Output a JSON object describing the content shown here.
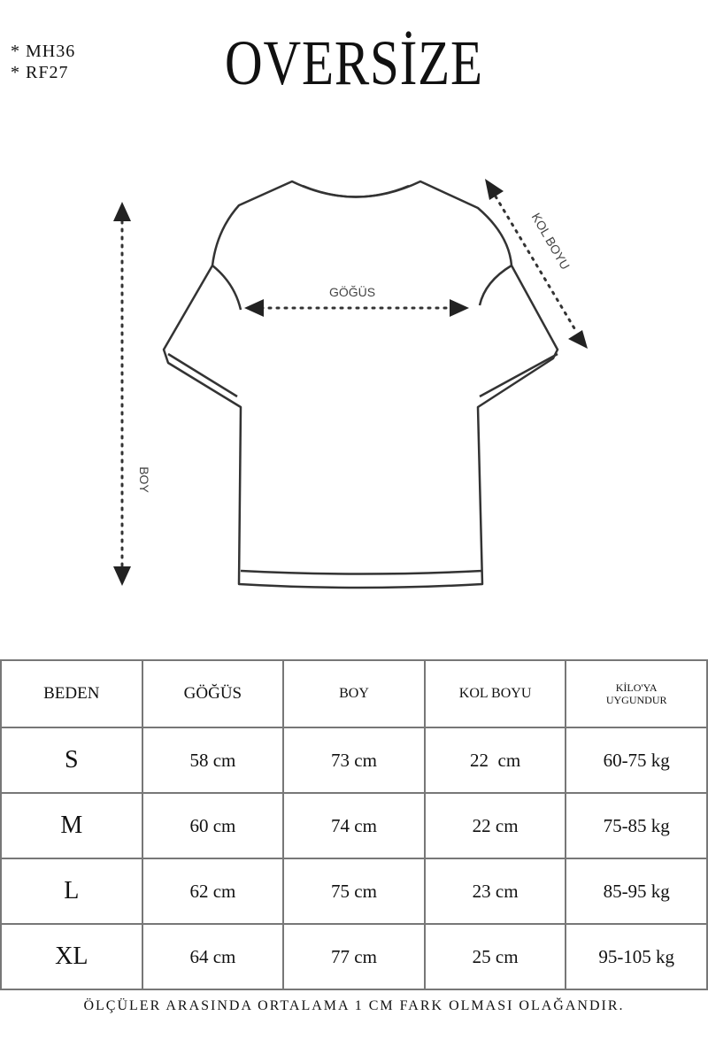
{
  "codes": [
    "* MH36",
    "* RF27"
  ],
  "title": "OVERSİZE",
  "diagram": {
    "chest_label": "GÖĞÜS",
    "length_label": "BOY",
    "sleeve_label": "KOL BOYU"
  },
  "table": {
    "headers": [
      "BEDEN",
      "GÖĞÜS",
      "BOY",
      "KOL BOYU",
      "KİLO'YA UYGUNDUR"
    ],
    "rows": [
      [
        "S",
        "58 cm",
        "73 cm",
        "22  cm",
        "60-75 kg"
      ],
      [
        "M",
        "60 cm",
        "74 cm",
        "22 cm",
        "75-85 kg"
      ],
      [
        "L",
        "62 cm",
        "75 cm",
        "23 cm",
        "85-95 kg"
      ],
      [
        "XL",
        "64 cm",
        "77 cm",
        "25 cm",
        "95-105 kg"
      ]
    ]
  },
  "note": "ÖLÇÜLER ARASINDA ORTALAMA 1 CM FARK OLMASI OLAĞANDIR."
}
